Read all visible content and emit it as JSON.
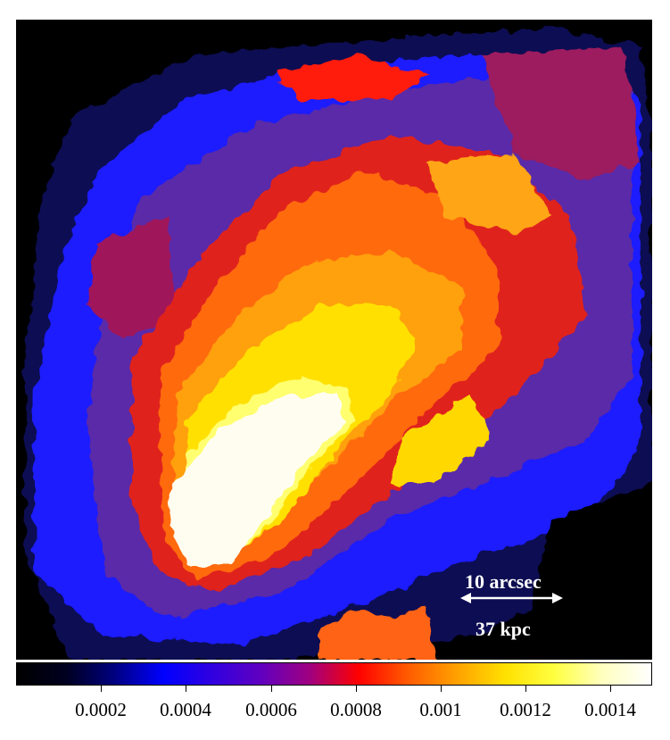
{
  "image": {
    "subject": "x-ray surface brightness map (binned regions)",
    "colormap": [
      "#000000",
      "#0a0a4a",
      "#1010c0",
      "#2020ff",
      "#4a1aa8",
      "#8a1060",
      "#b01840",
      "#ff1a10",
      "#ff6a10",
      "#ffa010",
      "#ffe000",
      "#ffff60",
      "#fffde0",
      "#ffffff"
    ]
  },
  "scalebar": {
    "top_label": "10 arcsec",
    "bottom_label": "37 kpc",
    "arrow": "double-headed"
  },
  "colorbar": {
    "ticks": [
      "0.0002",
      "0.0004",
      "0.0006",
      "0.0008",
      "0.001",
      "0.0012",
      "0.0014"
    ],
    "gradient": [
      "#000000",
      "#000020",
      "#000080",
      "#0000ff",
      "#3000e0",
      "#6000c0",
      "#a00080",
      "#ff0000",
      "#ff5a00",
      "#ffa000",
      "#ffe000",
      "#ffff40",
      "#ffffc0",
      "#ffffff"
    ]
  }
}
